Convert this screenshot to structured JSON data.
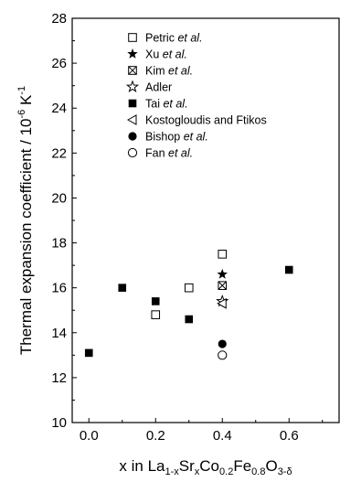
{
  "chart_data": {
    "type": "scatter",
    "xlabel_parts": {
      "lead": "x in La",
      "sub1": "1-x",
      "mid1": "Sr",
      "sub2": "x",
      "mid2": "Co",
      "sub3": "0.2",
      "mid3": "Fe",
      "sub4": "0.8",
      "mid4": "O",
      "sub5": "3-δ"
    },
    "ylabel_parts": {
      "lead": "Thermal expansion coefficient / 10",
      "sup1": "-6",
      "mid": " K",
      "sup2": "-1"
    },
    "xlim": [
      -0.05,
      0.75
    ],
    "ylim": [
      10,
      28
    ],
    "xticks": [
      "0.0",
      "0.2",
      "0.4",
      "0.6"
    ],
    "xtick_values": [
      0.0,
      0.2,
      0.4,
      0.6
    ],
    "yticks": [
      "10",
      "12",
      "14",
      "16",
      "18",
      "20",
      "22",
      "24",
      "26",
      "28"
    ],
    "ytick_values": [
      10,
      12,
      14,
      16,
      18,
      20,
      22,
      24,
      26,
      28
    ],
    "legend_position": "top-right",
    "series": [
      {
        "name_plain": "Petric ",
        "name_italic": "et al.",
        "marker": "square-open",
        "points": [
          [
            0.2,
            14.8
          ],
          [
            0.3,
            16.0
          ],
          [
            0.4,
            17.5
          ]
        ]
      },
      {
        "name_plain": "Xu ",
        "name_italic": "et al.",
        "marker": "star-filled",
        "points": [
          [
            0.4,
            16.6
          ]
        ]
      },
      {
        "name_plain": "Kim ",
        "name_italic": "et al.",
        "marker": "square-x",
        "points": [
          [
            0.4,
            16.1
          ]
        ]
      },
      {
        "name_plain": "Adler",
        "name_italic": "",
        "marker": "star-open",
        "points": [
          [
            0.4,
            15.4
          ]
        ]
      },
      {
        "name_plain": "Tai ",
        "name_italic": "et al.",
        "marker": "square-filled",
        "points": [
          [
            0.0,
            13.1
          ],
          [
            0.1,
            16.0
          ],
          [
            0.2,
            15.4
          ],
          [
            0.3,
            14.6
          ],
          [
            0.6,
            16.8
          ]
        ]
      },
      {
        "name_plain": "Kostogloudis and Ftikos",
        "name_italic": "",
        "marker": "triangle-left-open",
        "points": [
          [
            0.4,
            15.3
          ]
        ]
      },
      {
        "name_plain": "Bishop ",
        "name_italic": "et al.",
        "marker": "circle-filled",
        "points": [
          [
            0.4,
            13.5
          ]
        ]
      },
      {
        "name_plain": "Fan ",
        "name_italic": "et al.",
        "marker": "circle-open",
        "points": [
          [
            0.4,
            13.0
          ]
        ]
      }
    ]
  }
}
